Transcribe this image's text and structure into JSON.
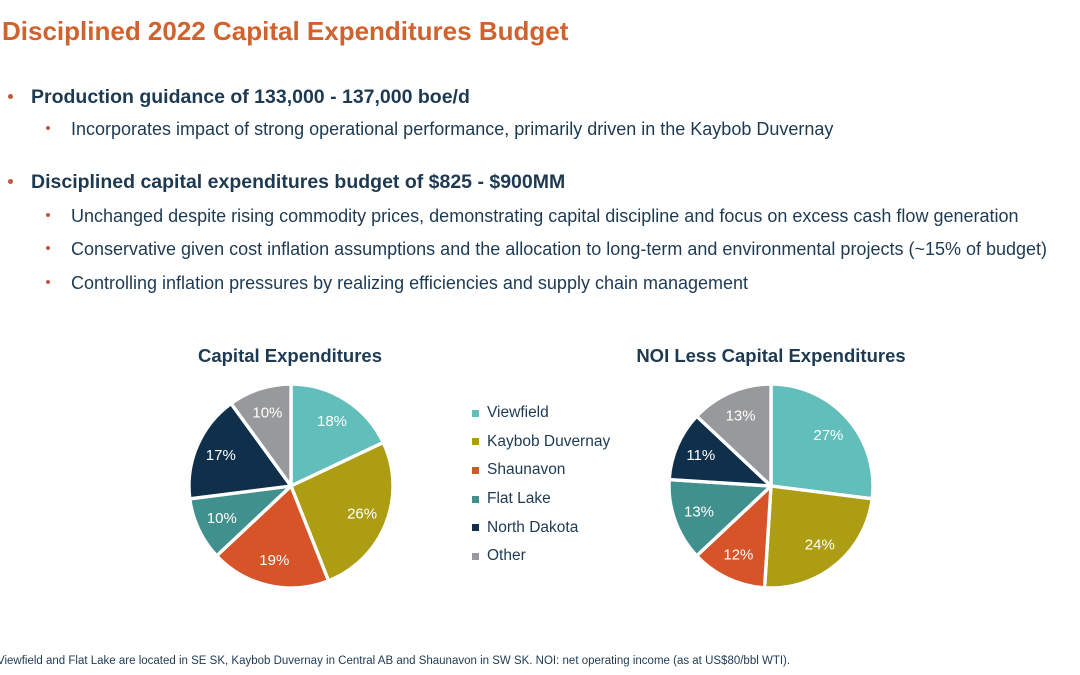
{
  "slide": {
    "title": "Disciplined 2022 Capital Expenditures Budget",
    "bullets": [
      {
        "text": "Production guidance of 133,000 - 137,000 boe/d",
        "sub": [
          "Incorporates impact of strong operational performance, primarily driven in the Kaybob Duvernay"
        ]
      },
      {
        "text": "Disciplined capital expenditures budget of $825 - $900MM",
        "sub": [
          "Unchanged despite rising commodity prices, demonstrating capital discipline and focus on excess cash flow generation",
          "Conservative given cost inflation assumptions and the allocation to long-term and environmental projects (~15% of budget)",
          "Controlling inflation pressures by realizing efficiencies and supply chain management"
        ]
      }
    ],
    "footnote": "Viewfield and Flat Lake are located in SE SK, Kaybob Duvernay in Central AB and Shaunavon in SW SK. NOI: net operating income (as at US$80/bbl WTI)."
  },
  "colors": {
    "title_orange": "#D0622E",
    "body_navy": "#1E3A52",
    "bullet_dot": "#C05742",
    "pie_label_text": "#FFFFFF",
    "pie_separator": "#FFFFFF"
  },
  "legend": {
    "items": [
      {
        "label": "Viewfield",
        "color": "#62BEBA"
      },
      {
        "label": "Kaybob Duvernay",
        "color": "#AC9D13"
      },
      {
        "label": "Shaunavon",
        "color": "#D75428"
      },
      {
        "label": "Flat Lake",
        "color": "#40908D"
      },
      {
        "label": "North Dakota",
        "color": "#0F2F4B"
      },
      {
        "label": "Other",
        "color": "#98999B"
      }
    ]
  },
  "chart_data": [
    {
      "type": "pie",
      "title": "Capital Expenditures",
      "categories": [
        "Viewfield",
        "Kaybob Duvernay",
        "Shaunavon",
        "Flat Lake",
        "North Dakota",
        "Other"
      ],
      "values": [
        18,
        26,
        19,
        10,
        17,
        10
      ],
      "labels": [
        "18%",
        "26%",
        "19%",
        "10%",
        "17%",
        "10%"
      ],
      "colors": [
        "#62BEBA",
        "#AC9D13",
        "#D75428",
        "#40908D",
        "#0F2F4B",
        "#98999B"
      ],
      "start_angle_deg": 0,
      "direction": "clockwise",
      "legend_position": "right-of-chart"
    },
    {
      "type": "pie",
      "title": "NOI Less Capital Expenditures",
      "categories": [
        "Viewfield",
        "Kaybob Duvernay",
        "Shaunavon",
        "Flat Lake",
        "North Dakota",
        "Other"
      ],
      "values": [
        27,
        24,
        12,
        13,
        11,
        13
      ],
      "labels": [
        "27%",
        "24%",
        "12%",
        "13%",
        "11%",
        "13%"
      ],
      "colors": [
        "#62BEBA",
        "#AC9D13",
        "#D75428",
        "#40908D",
        "#0F2F4B",
        "#98999B"
      ],
      "start_angle_deg": 0,
      "direction": "clockwise",
      "legend_position": "shared-left-legend"
    }
  ]
}
